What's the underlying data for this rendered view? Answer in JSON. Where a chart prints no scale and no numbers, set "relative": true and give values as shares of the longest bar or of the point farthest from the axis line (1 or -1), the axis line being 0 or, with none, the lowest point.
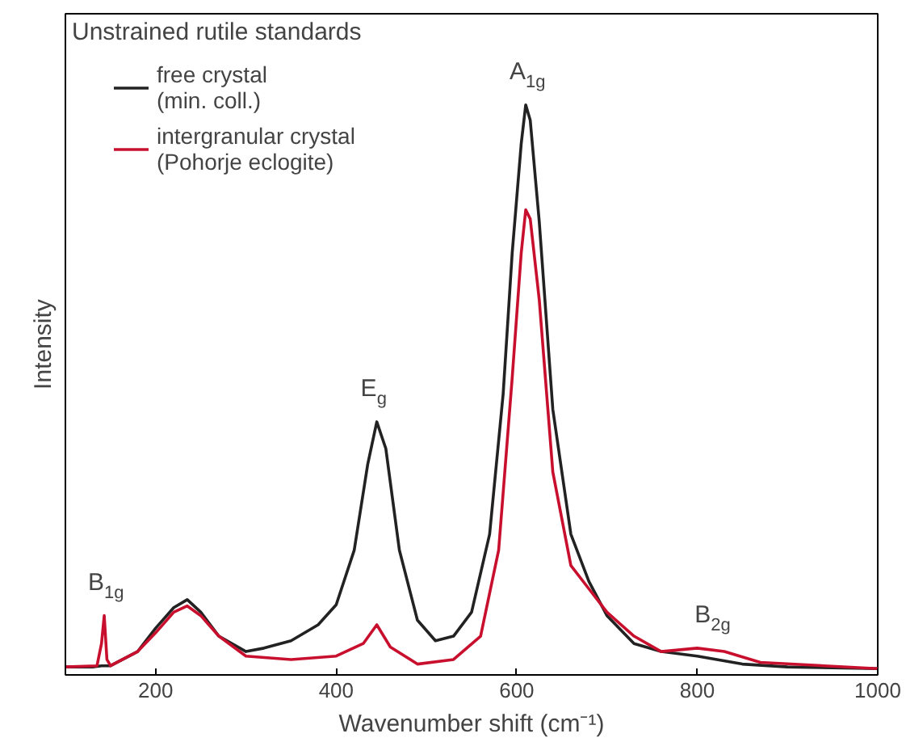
{
  "chart_data": {
    "type": "line",
    "relative": true,
    "title": "Unstrained rutile standards",
    "xlabel": "Wavenumber shift (cm⁻¹)",
    "ylabel": "Intensity",
    "xlim": [
      100,
      1000
    ],
    "xticks": [
      200,
      400,
      600,
      800,
      1000
    ],
    "tick_labels": "x",
    "grid": false,
    "legend": "top left",
    "line_style": "solid",
    "marker": "none",
    "series": [
      {
        "name": "free crystal\n(min. coll.)",
        "color": "#222222",
        "x": [
          100,
          130,
          140,
          150,
          180,
          200,
          220,
          235,
          250,
          270,
          300,
          320,
          350,
          380,
          400,
          420,
          435,
          445,
          455,
          470,
          490,
          510,
          530,
          550,
          570,
          585,
          595,
          605,
          610,
          615,
          625,
          640,
          660,
          680,
          700,
          730,
          760,
          800,
          850,
          900,
          1000
        ],
        "values": [
          0.014,
          0.014,
          0.016,
          0.016,
          0.041,
          0.082,
          0.118,
          0.132,
          0.11,
          0.068,
          0.041,
          0.047,
          0.06,
          0.088,
          0.123,
          0.219,
          0.37,
          0.444,
          0.397,
          0.219,
          0.096,
          0.06,
          0.068,
          0.11,
          0.247,
          0.493,
          0.74,
          0.932,
          1.0,
          0.973,
          0.795,
          0.466,
          0.247,
          0.164,
          0.104,
          0.055,
          0.041,
          0.033,
          0.019,
          0.014,
          0.011
        ]
      },
      {
        "name": "intergranular crystal\n(Pohorje eclogite)",
        "color": "#c8102e",
        "x": [
          100,
          135,
          140,
          143,
          146,
          150,
          180,
          200,
          220,
          235,
          250,
          270,
          300,
          350,
          400,
          430,
          445,
          460,
          490,
          530,
          560,
          580,
          595,
          605,
          610,
          615,
          625,
          640,
          660,
          680,
          700,
          730,
          760,
          800,
          830,
          870,
          1000
        ],
        "values": [
          0.014,
          0.016,
          0.055,
          0.104,
          0.027,
          0.016,
          0.041,
          0.074,
          0.11,
          0.121,
          0.104,
          0.068,
          0.033,
          0.027,
          0.033,
          0.055,
          0.088,
          0.049,
          0.019,
          0.027,
          0.068,
          0.219,
          0.521,
          0.74,
          0.816,
          0.8,
          0.658,
          0.356,
          0.192,
          0.151,
          0.11,
          0.068,
          0.041,
          0.047,
          0.041,
          0.022,
          0.011
        ]
      }
    ],
    "annotations": [
      {
        "text": "B$_{1g}$",
        "x": 143,
        "y": 0.104
      },
      {
        "text": "E$_{g}$",
        "x": 445,
        "y": 0.444
      },
      {
        "text": "A$_{1g}$",
        "x": 610,
        "y": 1.0
      },
      {
        "text": "B$_{2g}$",
        "x": 815,
        "y": 0.047
      }
    ]
  }
}
